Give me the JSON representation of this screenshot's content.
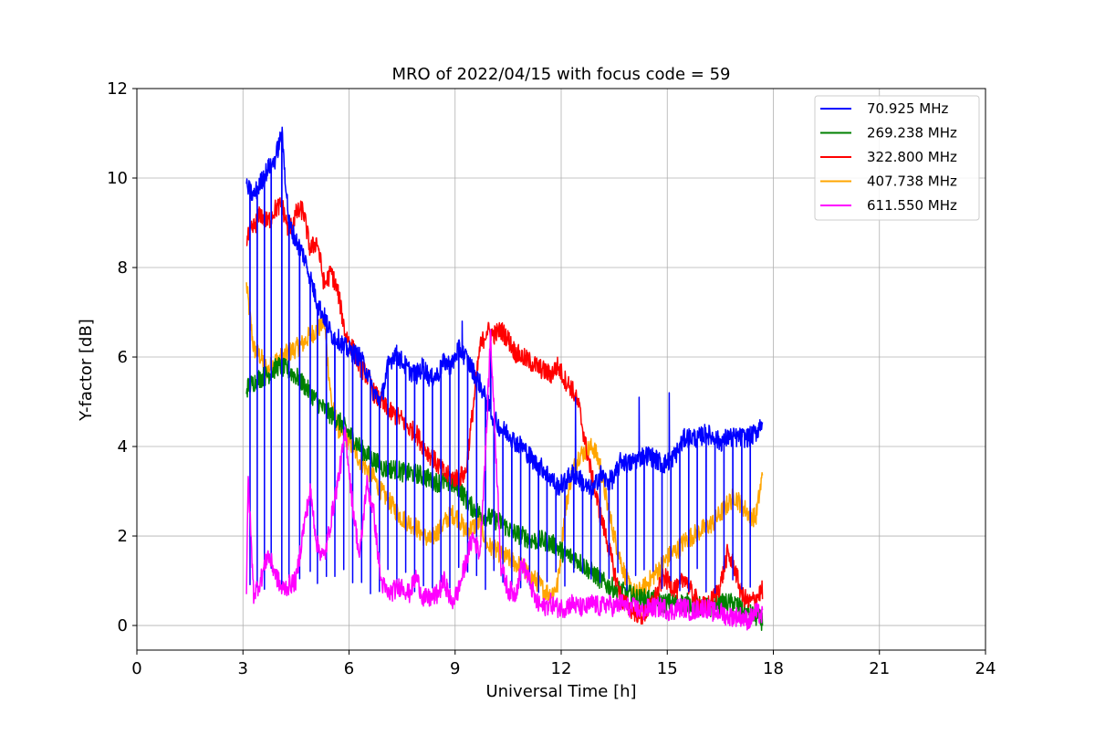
{
  "chart_data": {
    "type": "line",
    "title": "MRO of 2022/04/15 with focus code = 59",
    "xlabel": "Universal Time [h]",
    "ylabel": "Y-factor [dB]",
    "xlim": [
      0,
      24
    ],
    "ylim": [
      -0.55,
      12
    ],
    "xticks": [
      0,
      3,
      6,
      9,
      12,
      15,
      18,
      21,
      24
    ],
    "yticks": [
      0,
      2,
      4,
      6,
      8,
      10,
      12
    ],
    "xtick_labels": [
      "0",
      "3",
      "6",
      "9",
      "12",
      "15",
      "18",
      "21",
      "24"
    ],
    "ytick_labels": [
      "0",
      "2",
      "4",
      "6",
      "8",
      "10",
      "12"
    ],
    "grid": true,
    "legend_position": "top-right",
    "series": [
      {
        "name": " 70.925 MHz",
        "color": "#0000ff",
        "x": [
          3.1,
          3.3,
          3.5,
          3.7,
          3.9,
          4.1,
          4.3,
          4.5,
          4.7,
          4.9,
          5.1,
          5.3,
          5.5,
          5.7,
          5.9,
          6.1,
          6.3,
          6.5,
          6.7,
          6.9,
          7.1,
          7.3,
          7.5,
          7.7,
          7.9,
          8.1,
          8.3,
          8.5,
          8.7,
          8.9,
          9.1,
          9.3,
          9.5,
          9.7,
          9.9,
          10.1,
          10.3,
          10.5,
          10.7,
          10.9,
          11.1,
          11.3,
          11.5,
          11.7,
          11.9,
          12.1,
          12.3,
          12.5,
          12.7,
          12.9,
          13.1,
          13.3,
          13.5,
          13.7,
          13.9,
          14.1,
          14.3,
          14.5,
          14.7,
          14.9,
          15.1,
          15.3,
          15.5,
          15.7,
          15.9,
          16.1,
          16.3,
          16.5,
          16.7,
          16.9,
          17.1,
          17.3,
          17.5,
          17.7
        ],
        "y": [
          9.8,
          9.6,
          9.9,
          10.2,
          10.4,
          11.0,
          9.0,
          8.6,
          8.3,
          7.8,
          7.2,
          6.9,
          6.5,
          6.4,
          6.2,
          6.1,
          6.0,
          5.7,
          5.2,
          5.0,
          5.8,
          6.1,
          5.9,
          5.7,
          5.6,
          5.8,
          5.5,
          5.6,
          5.9,
          5.8,
          6.2,
          6.0,
          5.7,
          5.4,
          5.0,
          4.6,
          4.4,
          4.3,
          4.1,
          4.0,
          3.8,
          3.6,
          3.5,
          3.3,
          3.1,
          3.2,
          3.4,
          3.3,
          3.1,
          3.0,
          3.4,
          3.2,
          3.3,
          3.7,
          3.6,
          3.7,
          3.8,
          3.8,
          3.7,
          3.6,
          3.7,
          3.9,
          4.2,
          4.2,
          4.2,
          4.3,
          4.2,
          4.1,
          4.2,
          4.2,
          4.2,
          4.2,
          4.3,
          4.6
        ],
        "dips": [
          3.2,
          3.4,
          3.6,
          3.8,
          4.1,
          4.3,
          4.6,
          4.9,
          5.1,
          5.35,
          5.6,
          5.85,
          6.1,
          6.35,
          6.6,
          6.85,
          7.1,
          7.35,
          7.6,
          7.85,
          8.1,
          8.35,
          8.6,
          8.85,
          9.1,
          9.35,
          9.6,
          9.85,
          10.1,
          10.35,
          10.6,
          10.85,
          11.1,
          11.35,
          11.6,
          11.85,
          12.1,
          12.35,
          12.6,
          12.85,
          13.1,
          13.35,
          13.6,
          13.85,
          14.1,
          14.35,
          14.6,
          14.85,
          15.1,
          15.35,
          15.6,
          15.85,
          16.1,
          16.35,
          16.6,
          16.85,
          17.1,
          17.35
        ],
        "dip_value": 1.0,
        "spikes": [
          [
            9.2,
            6.8
          ],
          [
            12.4,
            5.1
          ],
          [
            14.2,
            5.1
          ],
          [
            15.05,
            5.2
          ],
          [
            10.0,
            6.6
          ]
        ]
      },
      {
        "name": "269.238 MHz",
        "color": "#008000",
        "x": [
          3.1,
          3.4,
          3.7,
          4.0,
          4.3,
          4.6,
          4.9,
          5.2,
          5.5,
          5.8,
          6.1,
          6.4,
          6.7,
          7.0,
          7.3,
          7.6,
          7.9,
          8.2,
          8.5,
          8.8,
          9.1,
          9.4,
          9.7,
          10.0,
          10.3,
          10.6,
          10.9,
          11.2,
          11.5,
          11.8,
          12.1,
          12.4,
          12.7,
          13.0,
          13.3,
          13.6,
          13.9,
          14.2,
          14.5,
          14.8,
          15.1,
          15.4,
          15.7,
          16.0,
          16.3,
          16.6,
          16.9,
          17.2,
          17.5,
          17.7
        ],
        "y": [
          5.3,
          5.5,
          5.6,
          5.8,
          5.7,
          5.5,
          5.2,
          4.9,
          4.7,
          4.5,
          4.2,
          3.9,
          3.7,
          3.5,
          3.5,
          3.4,
          3.4,
          3.3,
          3.2,
          3.2,
          3.1,
          2.7,
          2.5,
          2.4,
          2.3,
          2.1,
          2.0,
          1.9,
          1.9,
          1.8,
          1.6,
          1.5,
          1.3,
          1.1,
          0.9,
          0.8,
          0.7,
          0.6,
          0.6,
          0.5,
          0.5,
          0.5,
          0.5,
          0.4,
          0.4,
          0.5,
          0.5,
          0.3,
          0.2,
          0.1
        ]
      },
      {
        "name": "322.800 MHz",
        "color": "#ff0000",
        "x": [
          3.1,
          3.3,
          3.5,
          3.7,
          3.9,
          4.1,
          4.3,
          4.5,
          4.7,
          4.9,
          5.1,
          5.3,
          5.5,
          5.7,
          5.9,
          6.1,
          6.3,
          6.5,
          6.7,
          6.9,
          7.1,
          7.3,
          7.5,
          7.7,
          7.9,
          8.1,
          8.3,
          8.5,
          8.7,
          8.9,
          9.1,
          9.3,
          9.5,
          9.7,
          9.9,
          10.1,
          10.3,
          10.5,
          10.7,
          10.9,
          11.1,
          11.3,
          11.5,
          11.7,
          11.9,
          12.1,
          12.3,
          12.5,
          12.7,
          12.9,
          13.1,
          13.3,
          13.5,
          13.7,
          13.9,
          14.1,
          14.3,
          14.5,
          14.7,
          14.9,
          15.1,
          15.3,
          15.5,
          15.7,
          15.9,
          16.1,
          16.3,
          16.5,
          16.7,
          16.9,
          17.1,
          17.3,
          17.5,
          17.7
        ],
        "y": [
          8.6,
          8.9,
          9.2,
          9.0,
          9.3,
          9.4,
          8.8,
          9.2,
          9.3,
          8.4,
          8.6,
          7.6,
          7.9,
          7.4,
          6.5,
          6.2,
          5.8,
          5.6,
          5.2,
          5.0,
          4.8,
          4.7,
          4.6,
          4.4,
          4.3,
          4.0,
          3.8,
          3.6,
          3.4,
          3.3,
          3.3,
          3.4,
          4.8,
          6.2,
          6.6,
          6.5,
          6.6,
          6.4,
          6.1,
          6.0,
          5.9,
          5.8,
          5.7,
          5.6,
          5.8,
          5.5,
          5.3,
          4.9,
          4.0,
          3.2,
          2.5,
          1.9,
          1.2,
          0.6,
          0.4,
          0.3,
          0.2,
          0.4,
          0.7,
          1.1,
          0.9,
          0.8,
          1.1,
          0.7,
          0.5,
          0.4,
          0.6,
          0.9,
          1.6,
          1.3,
          0.7,
          0.5,
          0.6,
          0.8
        ]
      },
      {
        "name": "407.738 MHz",
        "color": "#ffa500",
        "x": [
          3.1,
          3.3,
          3.5,
          3.7,
          3.9,
          4.1,
          4.3,
          4.5,
          4.7,
          4.9,
          5.1,
          5.3,
          5.5,
          5.7,
          5.9,
          6.1,
          6.3,
          6.5,
          6.7,
          6.9,
          7.1,
          7.3,
          7.5,
          7.7,
          7.9,
          8.1,
          8.3,
          8.5,
          8.7,
          8.9,
          9.1,
          9.3,
          9.5,
          9.7,
          9.9,
          10.1,
          10.3,
          10.5,
          10.7,
          10.9,
          11.1,
          11.3,
          11.5,
          11.7,
          11.9,
          12.1,
          12.3,
          12.5,
          12.7,
          12.9,
          13.1,
          13.3,
          13.5,
          13.7,
          13.9,
          14.1,
          14.3,
          14.5,
          14.7,
          14.9,
          15.1,
          15.3,
          15.5,
          15.7,
          15.9,
          16.1,
          16.3,
          16.5,
          16.7,
          16.9,
          17.1,
          17.3,
          17.5,
          17.7
        ],
        "y": [
          7.6,
          6.2,
          6.0,
          5.7,
          5.9,
          6.0,
          6.1,
          6.2,
          6.3,
          6.5,
          6.6,
          6.8,
          5.0,
          4.4,
          4.2,
          4.0,
          3.7,
          3.5,
          3.3,
          3.0,
          2.8,
          2.6,
          2.4,
          2.3,
          2.2,
          2.0,
          1.9,
          2.1,
          2.3,
          2.5,
          2.4,
          2.1,
          2.2,
          2.3,
          1.8,
          1.7,
          1.6,
          1.5,
          1.4,
          1.3,
          1.1,
          1.0,
          0.8,
          0.7,
          0.9,
          2.5,
          3.4,
          3.8,
          3.9,
          4.0,
          3.6,
          2.7,
          2.0,
          1.4,
          0.9,
          0.7,
          0.8,
          1.0,
          1.2,
          1.4,
          1.6,
          1.7,
          1.9,
          2.0,
          2.1,
          2.2,
          2.3,
          2.5,
          2.7,
          2.9,
          2.7,
          2.5,
          2.4,
          3.4
        ]
      },
      {
        "name": "611.550 MHz",
        "color": "#ff00ff",
        "x": [
          3.1,
          3.15,
          3.3,
          3.5,
          3.7,
          3.9,
          4.1,
          4.3,
          4.5,
          4.7,
          4.9,
          5.1,
          5.3,
          5.5,
          5.7,
          5.9,
          6.1,
          6.3,
          6.5,
          6.7,
          6.9,
          7.1,
          7.3,
          7.5,
          7.7,
          7.9,
          8.1,
          8.3,
          8.5,
          8.7,
          8.9,
          9.1,
          9.3,
          9.5,
          9.7,
          9.9,
          10.0,
          10.1,
          10.3,
          10.5,
          10.7,
          10.9,
          11.1,
          11.3,
          11.5,
          11.7,
          11.9,
          12.1,
          12.3,
          12.5,
          12.7,
          12.9,
          13.1,
          13.3,
          13.5,
          13.7,
          13.9,
          14.1,
          14.3,
          14.5,
          14.7,
          14.9,
          15.1,
          15.3,
          15.5,
          15.7,
          15.9,
          16.1,
          16.3,
          16.5,
          16.7,
          16.9,
          17.1,
          17.3,
          17.5,
          17.7
        ],
        "y": [
          0.8,
          3.3,
          0.7,
          1.0,
          1.6,
          1.2,
          0.8,
          0.9,
          1.0,
          2.1,
          3.0,
          1.8,
          1.5,
          2.4,
          3.3,
          4.3,
          2.7,
          1.5,
          3.2,
          2.5,
          1.0,
          0.7,
          0.8,
          0.9,
          0.7,
          1.1,
          0.6,
          0.6,
          0.7,
          1.0,
          0.5,
          0.8,
          1.4,
          2.0,
          1.6,
          4.5,
          6.5,
          4.8,
          1.3,
          0.8,
          0.7,
          1.4,
          1.0,
          0.5,
          0.4,
          0.5,
          0.4,
          0.4,
          0.5,
          0.4,
          0.4,
          0.5,
          0.4,
          0.5,
          0.4,
          0.5,
          0.4,
          0.4,
          0.3,
          0.4,
          0.4,
          0.4,
          0.3,
          0.4,
          0.4,
          0.3,
          0.4,
          0.4,
          0.3,
          0.3,
          0.2,
          0.2,
          0.2,
          0.1,
          0.3,
          0.2
        ]
      }
    ]
  }
}
